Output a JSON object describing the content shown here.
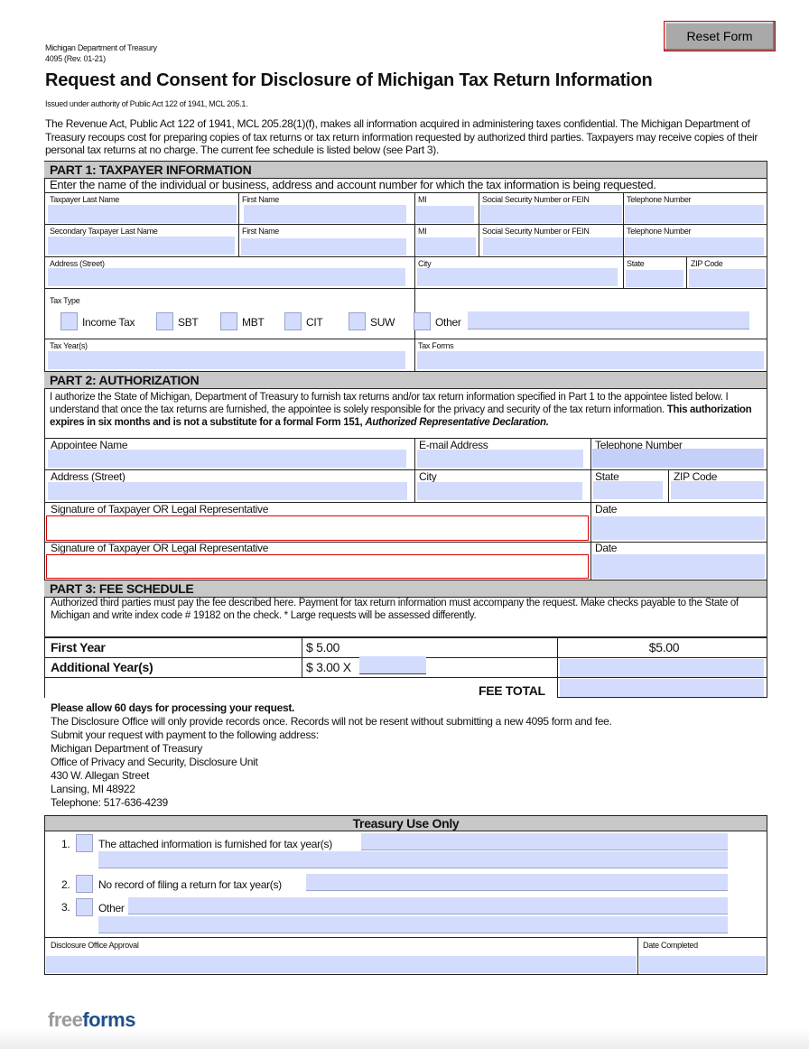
{
  "reset_label": "Reset Form",
  "header": {
    "dept": "Michigan Department of Treasury",
    "form": "4095 (Rev. 01-21)",
    "title": "Request and Consent for Disclosure of Michigan Tax Return Information",
    "authority": "Issued under authority of Public Act 122 of 1941, MCL 205.1.",
    "intro": "The Revenue Act, Public Act 122 of 1941, MCL 205.28(1)(f), makes all information acquired in administering taxes confidential. The Michigan Department of Treasury recoups cost for preparing copies of tax returns or tax return information requested by authorized third parties. Taxpayers may receive copies of their personal tax returns at no charge. The current fee schedule is listed below (see Part 3)."
  },
  "part1": {
    "title": "PART 1: TAXPAYER INFORMATION",
    "instruction": "Enter the name of the individual or business, address and account number for which the tax information is being requested.",
    "taxpayer_last": "Taxpayer Last Name",
    "first": "First Name",
    "mi": "MI",
    "ssn": "Social Security Number or FEIN",
    "phone": "Telephone Number",
    "secondary_last": "Secondary Taxpayer Last Name",
    "address": "Address (Street)",
    "city": "City",
    "state": "State",
    "zip": "ZIP Code",
    "tax_type": "Tax Type",
    "tax_types": [
      "Income Tax",
      "SBT",
      "MBT",
      "CIT",
      "SUW",
      "Other"
    ],
    "tax_years": "Tax Year(s)",
    "tax_forms": "Tax Forms"
  },
  "part2": {
    "title": "PART 2: AUTHORIZATION",
    "text": "I authorize the State of Michigan, Department of Treasury to furnish tax returns and/or tax return information specified in Part 1 to the appointee listed below. I understand that once the tax returns are furnished, the appointee is solely responsible for the privacy and security of the tax return information.",
    "bold_text": "This authorization expires in six months and is not a substitute for a formal Form 151, ",
    "italic_text": "Authorized Representative Declaration.",
    "appointee": "Appointee Name",
    "email": "E-mail Address",
    "phone": "Telephone Number",
    "address": "Address (Street)",
    "city": "City",
    "state": "State",
    "zip": "ZIP Code",
    "signature": "Signature of Taxpayer OR Legal Representative",
    "date": "Date"
  },
  "part3": {
    "title": "PART 3: FEE SCHEDULE",
    "text": "Authorized third parties must pay the fee described here. Payment for tax return information must accompany the request.  Make checks payable to the State of Michigan and write index code # 19182 on the check. * Large requests will be assessed differently.",
    "first_year": "First Year",
    "first_fee": "$ 5.00",
    "first_total": "$5.00",
    "additional": "Additional Year(s)",
    "additional_fee": "$ 3.00 X",
    "fee_total": "FEE TOTAL"
  },
  "notes": {
    "bold": "Please allow 60 days for processing your request.",
    "lines": [
      "The Disclosure Office will only provide records once. Records will not be resent without submitting a new 4095 form and fee.",
      "Submit your request with payment to the following address:",
      "Michigan Department of Treasury",
      "Office of Privacy and Security, Disclosure Unit",
      "430 W. Allegan Street",
      "Lansing, MI 48922",
      "Telephone: 517-636-4239"
    ]
  },
  "treasury": {
    "title": "Treasury Use Only",
    "items": [
      {
        "num": "1.",
        "label": "The attached information is furnished for tax year(s)"
      },
      {
        "num": "2.",
        "label": "No record of filing a return for tax year(s)"
      },
      {
        "num": "3.",
        "label": "Other"
      }
    ],
    "approval": "Disclosure Office Approval",
    "date_completed": "Date Completed"
  },
  "logo": {
    "part1": "free",
    "part2": "forms"
  },
  "colors": {
    "field": "#d3dcfd",
    "header": "#c8c8c8",
    "logo_grey": "#9a9a9a",
    "logo_blue": "#1f4e8c"
  }
}
